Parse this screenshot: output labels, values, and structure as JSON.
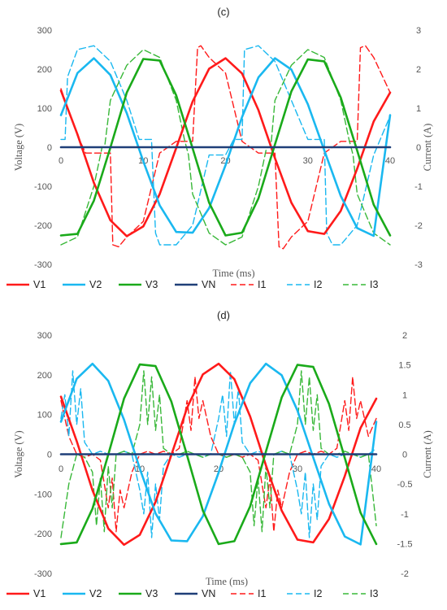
{
  "chart_data": [
    {
      "type": "line",
      "title": "(c)",
      "xlabel": "Time (ms)",
      "ylabel": "Voltage (V)",
      "y2label": "Current (A)",
      "xlim": [
        0,
        40
      ],
      "ylim": [
        -300,
        300
      ],
      "y2lim": [
        -3,
        3
      ],
      "xticks": [
        0,
        10,
        20,
        30,
        40
      ],
      "yticks": [
        300,
        200,
        100,
        0,
        -100,
        -200,
        -300
      ],
      "y2ticks": [
        3,
        2,
        1,
        0,
        -1,
        -2,
        -3
      ],
      "grid": false,
      "legend_position": "bottom",
      "series": [
        {
          "name": "V1",
          "axis": "left",
          "style": "solid",
          "color": "#ff1a1a",
          "x": [
            0,
            2,
            4,
            6,
            8,
            10,
            12,
            14,
            16,
            18,
            20,
            22,
            24,
            26,
            28,
            30,
            32,
            34,
            36,
            38,
            40
          ],
          "y": [
            145,
            33,
            -91,
            -187,
            -228,
            -203,
            -120,
            -2,
            117,
            201,
            228,
            189,
            95,
            -28,
            -142,
            -215,
            -222,
            -163,
            -55,
            66,
            140
          ]
        },
        {
          "name": "V2",
          "axis": "left",
          "style": "solid",
          "color": "#1ab8f0",
          "x": [
            0,
            2,
            4,
            6,
            8,
            10,
            12,
            14,
            16,
            18,
            20,
            22,
            24,
            26,
            28,
            30,
            32,
            34,
            36,
            38,
            40
          ],
          "y": [
            82,
            190,
            228,
            185,
            87,
            -36,
            -149,
            -217,
            -219,
            -156,
            -46,
            77,
            179,
            228,
            199,
            110,
            -8,
            -125,
            -207,
            -227,
            82
          ]
        },
        {
          "name": "V3",
          "axis": "left",
          "style": "solid",
          "color": "#1aaa1a",
          "x": [
            0,
            2,
            4,
            6,
            8,
            10,
            12,
            14,
            16,
            18,
            20,
            22,
            24,
            26,
            28,
            30,
            32,
            34,
            36,
            38,
            40
          ],
          "y": [
            -226,
            -222,
            -137,
            -1,
            140,
            226,
            222,
            133,
            -3,
            -142,
            -226,
            -219,
            -131,
            7,
            143,
            225,
            220,
            127,
            -9,
            -147,
            -226
          ]
        },
        {
          "name": "VN",
          "axis": "left",
          "style": "solid",
          "color": "#1f3f78",
          "x": [
            0,
            10,
            20,
            30,
            40
          ],
          "y": [
            0,
            0,
            0,
            0,
            0
          ]
        },
        {
          "name": "I1",
          "axis": "right",
          "style": "dashed",
          "color": "#ff1a1a",
          "x": [
            0,
            2,
            3,
            4,
            6,
            6.3,
            7,
            8,
            10,
            12,
            14,
            16,
            16.6,
            17,
            18,
            20,
            22,
            24,
            26,
            26.5,
            27,
            28,
            30,
            32,
            34,
            36,
            36.4,
            37,
            38,
            40
          ],
          "y": [
            1.5,
            0.3,
            -0.15,
            -0.15,
            -0.15,
            -2.5,
            -2.55,
            -2.3,
            -1.9,
            -0.15,
            0.15,
            0.15,
            2.55,
            2.6,
            2.3,
            1.9,
            0.15,
            -0.15,
            -0.15,
            -2.55,
            -2.6,
            -2.3,
            -1.9,
            -0.15,
            0.15,
            0.15,
            2.55,
            2.6,
            2.3,
            1.4
          ]
        },
        {
          "name": "I2",
          "axis": "right",
          "style": "dashed",
          "color": "#1ab8f0",
          "x": [
            0,
            0.5,
            0.8,
            2,
            4,
            6,
            8,
            9.5,
            10,
            11,
            11.5,
            12,
            14,
            16,
            18,
            20,
            21,
            22,
            22.3,
            24,
            26,
            28,
            30,
            31,
            32,
            32.3,
            33,
            34,
            36,
            38,
            40
          ],
          "y": [
            0.2,
            0.2,
            1.8,
            2.5,
            2.6,
            2.2,
            1.2,
            0.2,
            0.2,
            0.2,
            -2.2,
            -2.5,
            -2.5,
            -2.0,
            -0.2,
            -0.2,
            0.2,
            0.2,
            2.5,
            2.6,
            2.2,
            1.2,
            0.2,
            0.2,
            0.2,
            -2.2,
            -2.5,
            -2.5,
            -2.0,
            -0.2,
            0.8
          ]
        },
        {
          "name": "I3",
          "axis": "right",
          "style": "dashed",
          "color": "#39b839",
          "x": [
            0,
            2,
            4,
            5,
            5.3,
            6,
            8,
            10,
            12,
            14,
            15,
            15.5,
            16,
            18,
            20,
            22,
            24,
            25,
            25.5,
            26,
            28,
            30,
            32,
            34,
            35,
            35.5,
            36,
            38,
            40
          ],
          "y": [
            -2.5,
            -2.3,
            -1.0,
            0,
            0,
            1.2,
            2.1,
            2.5,
            2.3,
            1.2,
            0.2,
            -0.2,
            -1.2,
            -2.2,
            -2.5,
            -2.3,
            -1.0,
            0,
            0,
            1.2,
            2.1,
            2.5,
            2.3,
            1.2,
            0.2,
            -0.2,
            -1.2,
            -2.2,
            -2.5
          ]
        }
      ]
    },
    {
      "type": "line",
      "title": "(d)",
      "xlabel": "Time (ms)",
      "ylabel": "Voltage (V)",
      "y2label": "Current (A)",
      "xlim": [
        0,
        40
      ],
      "ylim": [
        -300,
        300
      ],
      "y2lim": [
        -2,
        2
      ],
      "xticks": [
        0,
        10,
        20,
        30,
        40
      ],
      "yticks": [
        300,
        200,
        100,
        0,
        -100,
        -200,
        -300
      ],
      "y2ticks": [
        2,
        1.5,
        1,
        0.5,
        0,
        -0.5,
        -1,
        -1.5,
        -2
      ],
      "y2ticklabels": [
        "2",
        "1.5",
        "1",
        "0.5",
        "0",
        "-0.5",
        "-1",
        "-1.5",
        "-2"
      ],
      "grid": false,
      "legend_position": "bottom",
      "series": [
        {
          "name": "V1",
          "axis": "left",
          "style": "solid",
          "color": "#ff1a1a",
          "x": [
            0,
            2,
            4,
            6,
            8,
            10,
            12,
            14,
            16,
            18,
            20,
            22,
            24,
            26,
            28,
            30,
            32,
            34,
            36,
            38,
            40
          ],
          "y": [
            145,
            33,
            -91,
            -187,
            -228,
            -203,
            -120,
            -2,
            117,
            201,
            228,
            189,
            95,
            -28,
            -142,
            -215,
            -222,
            -163,
            -55,
            66,
            140
          ]
        },
        {
          "name": "V2",
          "axis": "left",
          "style": "solid",
          "color": "#1ab8f0",
          "x": [
            0,
            2,
            4,
            6,
            8,
            10,
            12,
            14,
            16,
            18,
            20,
            22,
            24,
            26,
            28,
            30,
            32,
            34,
            36,
            38,
            40
          ],
          "y": [
            82,
            190,
            228,
            185,
            87,
            -36,
            -149,
            -217,
            -219,
            -156,
            -46,
            77,
            179,
            228,
            199,
            110,
            -8,
            -125,
            -207,
            -227,
            82
          ]
        },
        {
          "name": "V3",
          "axis": "left",
          "style": "solid",
          "color": "#1aaa1a",
          "x": [
            0,
            2,
            4,
            6,
            8,
            10,
            12,
            14,
            16,
            18,
            20,
            22,
            24,
            26,
            28,
            30,
            32,
            34,
            36,
            38,
            40
          ],
          "y": [
            -226,
            -222,
            -137,
            -1,
            140,
            226,
            222,
            133,
            -3,
            -142,
            -226,
            -219,
            -131,
            7,
            143,
            225,
            220,
            127,
            -9,
            -147,
            -226
          ]
        },
        {
          "name": "VN",
          "axis": "left",
          "style": "solid",
          "color": "#1f3f78",
          "x": [
            0,
            10,
            20,
            30,
            40
          ],
          "y": [
            0,
            0,
            0,
            0,
            0
          ]
        },
        {
          "name": "I1",
          "axis": "right",
          "style": "dashed",
          "color": "#ff1a1a",
          "x": [
            0,
            1,
            2,
            3,
            4,
            5,
            6,
            6.5,
            7,
            7.5,
            8,
            9,
            10,
            11,
            12,
            13,
            14,
            15,
            16,
            16.5,
            17,
            17.5,
            18,
            19,
            20,
            21,
            22,
            23,
            24,
            25,
            26,
            26.5,
            27,
            27.5,
            28,
            29,
            30,
            31,
            32,
            33,
            34,
            35,
            36,
            36.5,
            37,
            37.5,
            38,
            39,
            40
          ],
          "y": [
            0.9,
            0.3,
            0.0,
            -0.05,
            0.0,
            -0.1,
            -0.9,
            -0.4,
            -1.3,
            -0.6,
            -0.9,
            -0.3,
            0.0,
            0.05,
            0.0,
            0.05,
            0.0,
            0.1,
            0.9,
            0.4,
            1.3,
            0.6,
            0.9,
            0.3,
            0.0,
            -0.05,
            0.0,
            -0.05,
            0.0,
            -0.1,
            -0.9,
            -0.4,
            -1.3,
            -0.6,
            -0.9,
            -0.3,
            0.0,
            0.05,
            0.0,
            0.05,
            0.0,
            0.1,
            0.9,
            0.4,
            1.3,
            0.6,
            0.9,
            0.3,
            0.6
          ]
        },
        {
          "name": "I2",
          "axis": "right",
          "style": "dashed",
          "color": "#1ab8f0",
          "x": [
            0,
            0.5,
            1,
            1.5,
            2,
            2.5,
            3,
            4,
            5,
            6,
            7,
            8,
            9,
            10,
            10.5,
            11,
            11.5,
            12,
            12.5,
            13,
            14,
            15,
            16,
            17,
            18,
            19,
            20,
            20.5,
            21,
            21.5,
            22,
            22.5,
            23,
            24,
            25,
            26,
            27,
            28,
            29,
            30,
            30.5,
            31,
            31.5,
            32,
            32.5,
            33,
            34,
            35,
            36,
            37,
            38,
            39,
            40
          ],
          "y": [
            0.6,
            1.0,
            0.3,
            1.4,
            0.5,
            1.1,
            0.2,
            0.0,
            0.05,
            0.0,
            0.0,
            0.05,
            0.0,
            -0.6,
            -1.0,
            -0.3,
            -1.4,
            -0.5,
            -1.1,
            -0.2,
            0.0,
            -0.05,
            0.0,
            0.0,
            -0.05,
            0.0,
            0.6,
            1.0,
            0.3,
            1.4,
            0.5,
            1.1,
            0.2,
            0.0,
            0.05,
            0.0,
            0.0,
            0.05,
            0.0,
            -0.6,
            -1.0,
            -0.3,
            -1.4,
            -0.5,
            -1.1,
            -0.2,
            0.0,
            -0.05,
            0.0,
            0.0,
            -0.05,
            0.0,
            0.1
          ]
        },
        {
          "name": "I3",
          "axis": "right",
          "style": "dashed",
          "color": "#39b839",
          "x": [
            0,
            1,
            2,
            3,
            4,
            4.5,
            5,
            5.5,
            6,
            6.5,
            7,
            8,
            9,
            10,
            10.5,
            11,
            11.5,
            12,
            12.5,
            13,
            14,
            15,
            16,
            17,
            18,
            19,
            20,
            21,
            22,
            23,
            24,
            24.5,
            25,
            25.5,
            26,
            26.5,
            27,
            28,
            29,
            30,
            30.5,
            31,
            31.5,
            32,
            32.5,
            33,
            34,
            35,
            36,
            37,
            38,
            39,
            40
          ],
          "y": [
            -1.4,
            -0.5,
            0.0,
            -0.05,
            -0.3,
            -1.2,
            -0.4,
            -1.3,
            -0.2,
            -0.9,
            0.0,
            0.05,
            0.0,
            0.5,
            1.4,
            0.5,
            1.3,
            0.4,
            1.0,
            0.1,
            0.0,
            0.0,
            0.05,
            0.0,
            -0.05,
            0.0,
            0.0,
            -0.05,
            0.0,
            -0.05,
            -0.3,
            -1.2,
            -0.4,
            -1.3,
            -0.2,
            -0.9,
            0.0,
            0.05,
            0.0,
            0.5,
            1.4,
            0.5,
            1.3,
            0.4,
            1.0,
            0.1,
            0.0,
            0.0,
            0.05,
            0.0,
            -0.05,
            0.0,
            -1.2
          ]
        }
      ]
    }
  ]
}
